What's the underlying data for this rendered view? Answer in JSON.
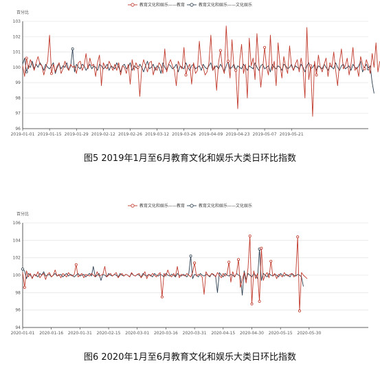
{
  "colors": {
    "education": "#c0392b",
    "culture": "#2c3e50",
    "grid": "#e6e6e6",
    "axis": "#333333"
  },
  "chart_data": [
    {
      "type": "line",
      "caption": "图5 2019年1月至6月教育文化和娱乐大类日环比指数",
      "ylabel": "百分比",
      "ylim": [
        96,
        103
      ],
      "yticks": [
        96,
        97,
        98,
        99,
        100,
        101,
        102,
        103
      ],
      "x_start": "2019-01-01",
      "x_days": 181,
      "xtick_labels": [
        "2019-01-01",
        "2019-01-15",
        "2019-01-29",
        "2019-02-12",
        "2019-02-26",
        "2019-03-12",
        "2019-03-26",
        "2019-04-09",
        "2019-04-23",
        "2019-05-07",
        "2019-05-21"
      ],
      "xtick_days": [
        0,
        14,
        28,
        42,
        56,
        70,
        84,
        98,
        112,
        126,
        140
      ],
      "legend": "top-center",
      "series": [
        {
          "name": "教育文化和娱乐——教育",
          "color": "#c0392b",
          "values": [
            100.1,
            99.4,
            100.6,
            99.9,
            100.5,
            100.2,
            99.8,
            100.3,
            100.7,
            100.2,
            100.1,
            99.5,
            100.0,
            100.4,
            102.1,
            99.6,
            100.2,
            99.7,
            100.1,
            100.3,
            99.6,
            99.9,
            100.4,
            100.0,
            99.8,
            100.2,
            100.0,
            100.1,
            99.6,
            100.3,
            100.4,
            99.8,
            100.1,
            100.9,
            99.9,
            100.6,
            100.1,
            100.2,
            99.4,
            100.3,
            100.8,
            98.8,
            100.3,
            100.0,
            99.9,
            100.4,
            100.1,
            99.8,
            100.2,
            99.8,
            100.3,
            99.5,
            100.1,
            100.0,
            99.6,
            100.2,
            98.9,
            100.5,
            99.8,
            100.3,
            100.0,
            98.1,
            99.9,
            100.5,
            100.1,
            99.7,
            100.3,
            100.4,
            99.5,
            100.0,
            99.8,
            100.3,
            100.1,
            99.6,
            101.2,
            99.7,
            100.2,
            100.5,
            100.1,
            99.8,
            98.8,
            100.4,
            100.1,
            99.9,
            101.3,
            99.5,
            100.0,
            100.2,
            98.9,
            100.3,
            99.6,
            99.8,
            101.7,
            100.2,
            100.0,
            99.5,
            99.7,
            100.3,
            102.1,
            99.8,
            100.1,
            98.5,
            100.3,
            101.1,
            100.0,
            99.6,
            102.7,
            100.4,
            99.3,
            101.8,
            100.0,
            99.8,
            97.3,
            100.4,
            101.5,
            99.6,
            100.2,
            98.0,
            101.9,
            100.1,
            100.6,
            99.2,
            102.2,
            100.3,
            98.7,
            99.9,
            101.3,
            100.0,
            99.5,
            102.1,
            99.8,
            100.4,
            98.8,
            101.6,
            100.2,
            99.3,
            100.7,
            100.0,
            99.6,
            101.4,
            100.1,
            99.8,
            100.2,
            100.5,
            99.7,
            100.6,
            99.9,
            98.0,
            102.6,
            99.2,
            100.1,
            96.8,
            100.4,
            99.5,
            100.8,
            100.0,
            99.7,
            100.2,
            100.6,
            99.4,
            100.3,
            100.0,
            101.0,
            99.8,
            98.8,
            100.3,
            101.2,
            99.9,
            100.1,
            100.6,
            99.5,
            100.2,
            101.3,
            99.8,
            100.0,
            99.4,
            100.7,
            100.2,
            99.9,
            100.5,
            100.1,
            99.6,
            100.9,
            100.0,
            101.6,
            99.7,
            100.4
          ],
          "markers": [
            2,
            15,
            60,
            85,
            103,
            107,
            111,
            126,
            150,
            153,
            178
          ]
        },
        {
          "name": "教育文化和娱乐——文化娱乐",
          "color": "#2c3e50",
          "values": [
            100.2,
            100.6,
            99.7,
            100.1,
            100.0,
            100.4,
            99.9,
            100.2,
            100.0,
            100.3,
            100.1,
            99.8,
            100.2,
            100.0,
            99.9,
            100.1,
            100.3,
            99.6,
            100.0,
            100.2,
            99.9,
            100.1,
            100.0,
            100.3,
            99.8,
            100.1,
            101.2,
            99.7,
            100.2,
            100.0,
            99.9,
            100.2,
            100.1,
            99.8,
            100.0,
            100.2,
            99.9,
            100.1,
            100.0,
            99.8,
            100.2,
            100.1,
            99.9,
            100.0,
            100.2,
            99.8,
            100.1,
            100.0,
            99.9,
            100.3,
            100.0,
            99.7,
            100.1,
            100.2,
            99.9,
            100.0,
            100.3,
            99.8,
            100.1,
            100.0,
            99.9,
            100.2,
            100.0,
            99.7,
            100.1,
            100.4,
            99.9,
            100.0,
            100.2,
            99.8,
            100.1,
            100.0,
            99.6,
            100.3,
            100.0,
            99.8,
            100.2,
            100.1,
            99.9,
            100.0,
            100.2,
            99.7,
            100.1,
            100.0,
            99.9,
            100.3,
            100.0,
            99.8,
            100.1,
            100.2,
            99.9,
            100.0,
            100.1,
            99.8,
            100.2,
            100.0,
            99.9,
            100.1,
            100.3,
            99.8,
            100.0,
            100.1,
            99.9,
            100.2,
            100.0,
            99.7,
            100.1,
            100.4,
            99.9,
            100.0,
            100.2,
            99.8,
            100.1,
            100.0,
            99.9,
            100.2,
            100.0,
            99.8,
            100.1,
            100.0,
            99.9,
            100.3,
            100.0,
            99.8,
            100.1,
            100.2,
            99.9,
            100.0,
            100.1,
            99.7,
            100.2,
            100.0,
            99.9,
            100.1,
            100.0,
            99.8,
            100.2,
            100.1,
            99.9,
            100.0,
            100.2,
            99.8,
            100.1,
            100.0,
            99.9,
            100.2,
            100.0,
            99.7,
            100.1,
            100.3,
            99.9,
            100.0,
            100.2,
            99.8,
            100.1,
            100.0,
            99.9,
            100.2,
            100.0,
            99.8,
            100.1,
            100.0,
            99.9,
            100.3,
            100.0,
            99.8,
            100.1,
            100.2,
            99.9,
            100.0,
            100.1,
            99.8,
            100.2,
            100.0,
            99.9,
            100.1,
            100.4,
            99.7,
            100.0,
            100.2,
            99.9,
            100.1,
            99.0,
            98.3
          ],
          "markers": [
            2,
            26,
            180
          ]
        }
      ]
    },
    {
      "type": "line",
      "caption": "图6 2020年1月至6月教育文化和娱乐大类日环比指数",
      "ylabel": "百分比",
      "ylim": [
        94,
        106
      ],
      "yticks": [
        94,
        96,
        98,
        100,
        102,
        104,
        106
      ],
      "x_start": "2020-01-01",
      "x_days": 182,
      "xtick_labels": [
        "2020-01-01",
        "2020-01-16",
        "2020-01-31",
        "2020-02-15",
        "2020-03-01",
        "2020-03-16",
        "2020-03-31",
        "2020-04-15",
        "2020-04-30",
        "2020-05-15",
        "2020-05-30"
      ],
      "xtick_days": [
        0,
        15,
        30,
        45,
        60,
        75,
        90,
        105,
        120,
        135,
        150
      ],
      "legend": "top-center",
      "series": [
        {
          "name": "教育文化和娱乐——教育",
          "color": "#c0392b",
          "values": [
            100.3,
            98.6,
            100.5,
            99.8,
            100.2,
            99.6,
            100.1,
            99.9,
            100.4,
            99.7,
            100.0,
            100.2,
            99.5,
            100.1,
            100.3,
            99.8,
            100.0,
            100.6,
            99.9,
            100.1,
            99.7,
            100.2,
            100.0,
            99.8,
            100.3,
            100.0,
            99.9,
            100.1,
            101.2,
            99.8,
            100.0,
            100.2,
            99.7,
            100.1,
            100.0,
            99.9,
            100.2,
            100.0,
            99.8,
            100.4,
            99.9,
            100.0,
            100.1,
            101.0,
            99.8,
            100.0,
            100.2,
            99.9,
            100.1,
            100.3,
            99.7,
            100.0,
            100.2,
            99.9,
            100.1,
            100.0,
            99.8,
            100.3,
            100.0,
            99.9,
            100.1,
            100.2,
            99.7,
            100.0,
            100.4,
            99.6,
            100.1,
            99.9,
            100.2,
            100.0,
            99.8,
            100.1,
            100.3,
            97.5,
            100.2,
            99.9,
            100.6,
            100.0,
            99.8,
            100.2,
            99.9,
            101.0,
            99.7,
            100.1,
            100.0,
            99.9,
            100.2,
            100.0,
            99.8,
            100.3,
            101.4,
            99.9,
            100.1,
            100.0,
            99.8,
            97.8,
            100.4,
            100.0,
            99.9,
            100.2,
            100.1,
            99.8,
            100.3,
            100.0,
            99.7,
            100.2,
            99.9,
            100.1,
            101.5,
            99.2,
            100.4,
            99.8,
            100.2,
            101.8,
            98.6,
            99.5,
            100.3,
            99.1,
            100.8,
            104.5,
            96.7,
            100.5,
            99.6,
            100.2,
            97.0,
            103.1,
            99.4,
            100.0,
            100.3,
            99.7,
            101.6,
            99.9,
            100.2,
            99.6,
            100.1,
            100.0,
            99.8,
            100.3,
            100.0,
            99.9,
            100.1,
            100.2,
            99.8,
            100.0,
            104.4,
            95.9,
            100.3,
            100.0,
            99.8,
            99.6
          ],
          "markers": [
            1,
            28,
            73,
            90,
            108,
            113,
            119,
            120,
            124,
            125,
            130,
            144,
            145
          ]
        },
        {
          "name": "教育文化和娱乐——文化娱乐",
          "color": "#2c3e50",
          "values": [
            100.7,
            100.5,
            99.6,
            100.2,
            100.0,
            99.7,
            100.1,
            100.0,
            99.8,
            100.2,
            100.0,
            100.4,
            99.9,
            100.0,
            100.1,
            99.8,
            100.0,
            100.2,
            99.9,
            100.0,
            100.1,
            99.8,
            100.0,
            100.2,
            99.9,
            100.1,
            100.0,
            99.8,
            100.0,
            100.2,
            99.9,
            100.0,
            100.1,
            99.8,
            100.0,
            100.2,
            99.9,
            101.0,
            99.8,
            100.0,
            100.2,
            99.4,
            100.1,
            100.0,
            99.8,
            100.2,
            100.0,
            99.9,
            100.1,
            100.0,
            99.8,
            100.2,
            100.0,
            99.9,
            100.1,
            100.0,
            99.8,
            100.2,
            100.0,
            99.9,
            100.1,
            100.0,
            99.8,
            100.2,
            100.0,
            99.9,
            100.1,
            100.0,
            99.8,
            100.2,
            100.0,
            99.9,
            100.1,
            100.0,
            99.8,
            100.2,
            100.0,
            99.9,
            100.1,
            100.0,
            99.8,
            100.2,
            100.0,
            99.9,
            100.1,
            100.0,
            99.8,
            100.2,
            102.2,
            99.6,
            100.1,
            100.0,
            99.8,
            100.2,
            100.0,
            99.9,
            100.1,
            100.0,
            99.8,
            100.2,
            100.0,
            99.9,
            98.0,
            100.3,
            100.0,
            99.8,
            100.2,
            100.0,
            99.9,
            100.1,
            100.0,
            99.8,
            100.2,
            100.0,
            99.9,
            97.7,
            100.5,
            99.5,
            100.2,
            100.0,
            99.8,
            100.2,
            100.0,
            99.6,
            103.0,
            99.4,
            100.2,
            100.0,
            99.8,
            100.2,
            100.0,
            99.9,
            100.1,
            100.0,
            99.8,
            100.2,
            100.0,
            99.9,
            100.1,
            100.0,
            99.8,
            100.2,
            100.0,
            99.9,
            100.1,
            100.0,
            99.8,
            98.7
          ],
          "markers": [
            0,
            88,
            124,
            150
          ]
        }
      ]
    }
  ]
}
